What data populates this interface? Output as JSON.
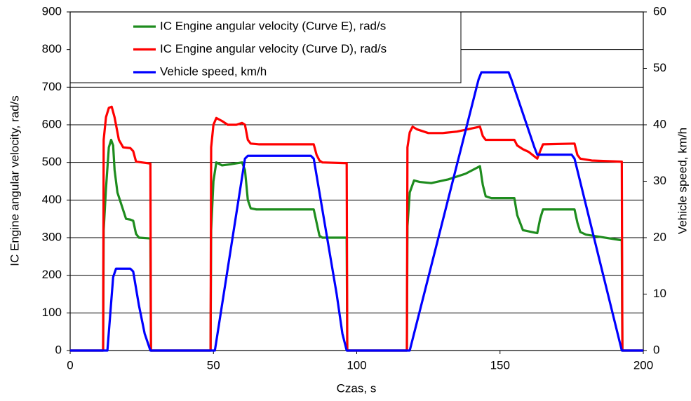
{
  "chart_data": {
    "type": "line",
    "xlabel": "Czas, s",
    "ylabel": "IC Engine  angular velocity, rad/s",
    "y2label": "Vehicle speed, km/h",
    "xlim": [
      0,
      200
    ],
    "xticks": [
      0,
      50,
      100,
      150,
      200
    ],
    "ylim": [
      0,
      900
    ],
    "yticks": [
      0,
      100,
      200,
      300,
      400,
      500,
      600,
      700,
      800,
      900
    ],
    "y2lim": [
      0,
      60
    ],
    "y2ticks": [
      0,
      10,
      20,
      30,
      40,
      50,
      60
    ],
    "grid": true,
    "legend": "upper-left",
    "series": [
      {
        "name": "IC Engine angular velocity (Curve E), rad/s",
        "color": "#1e8c1e",
        "x": [
          0,
          11.5,
          11.7,
          12.5,
          13.5,
          14.3,
          15,
          15.5,
          16.5,
          18,
          19.5,
          21,
          22,
          23,
          24,
          28,
          28.2,
          49,
          49.2,
          50,
          51,
          53,
          56,
          60,
          61,
          62,
          63,
          65,
          85,
          86,
          87,
          88,
          96.5,
          96.7,
          117.5,
          117.7,
          118.5,
          120,
          122,
          126,
          132,
          138,
          143,
          144,
          145,
          147,
          155,
          156,
          158,
          163,
          164,
          165,
          176,
          177,
          178,
          180,
          185,
          192.5,
          192.7,
          200
        ],
        "values": [
          0,
          0,
          320,
          430,
          540,
          560,
          545,
          480,
          420,
          385,
          350,
          348,
          345,
          310,
          300,
          298,
          0,
          0,
          320,
          450,
          500,
          492,
          495,
          500,
          480,
          400,
          378,
          375,
          375,
          340,
          305,
          300,
          300,
          0,
          0,
          330,
          420,
          452,
          448,
          445,
          455,
          470,
          490,
          440,
          410,
          405,
          405,
          360,
          320,
          312,
          350,
          375,
          375,
          340,
          315,
          308,
          302,
          293,
          0,
          0
        ]
      },
      {
        "name": "IC Engine angular velocity (Curve D), rad/s",
        "color": "#ff0000",
        "x": [
          0,
          11.5,
          11.7,
          12.5,
          13.5,
          14.5,
          15.5,
          17,
          18.5,
          21,
          22,
          23,
          28,
          28.2,
          49,
          49.2,
          50,
          51,
          53,
          55,
          58,
          60,
          61,
          62,
          63,
          66,
          85,
          86,
          87,
          88,
          96.5,
          96.7,
          117.5,
          117.7,
          118.5,
          119.5,
          121,
          125,
          130,
          135,
          140,
          143,
          144,
          145,
          155,
          156,
          158,
          160,
          163,
          164,
          165,
          176,
          177,
          178,
          182,
          192.5,
          192.7,
          200
        ],
        "values": [
          0,
          0,
          560,
          620,
          645,
          648,
          620,
          560,
          540,
          538,
          530,
          502,
          497,
          0,
          0,
          540,
          600,
          618,
          610,
          600,
          600,
          605,
          600,
          560,
          550,
          548,
          548,
          520,
          505,
          500,
          498,
          0,
          0,
          540,
          580,
          595,
          588,
          578,
          578,
          582,
          590,
          595,
          570,
          560,
          560,
          545,
          535,
          528,
          510,
          530,
          548,
          550,
          520,
          510,
          505,
          502,
          0,
          0
        ]
      },
      {
        "name": "Vehicle speed, km/h",
        "color": "#0000ff",
        "axis": "y2",
        "x": [
          0,
          11.5,
          13,
          15,
          16,
          21,
          22,
          24,
          26,
          28,
          49,
          50.5,
          61,
          62,
          84,
          85,
          93,
          95,
          96.5,
          117.5,
          118.5,
          142.5,
          143.5,
          153,
          154,
          162,
          163,
          175,
          176,
          192.5,
          200
        ],
        "values": [
          0,
          0,
          0,
          13,
          14.5,
          14.5,
          14,
          8,
          3,
          0,
          0,
          0,
          34,
          34.5,
          34.5,
          34,
          10,
          3,
          0,
          0,
          0,
          48,
          49.3,
          49.3,
          48,
          36,
          34.7,
          34.7,
          34,
          0,
          0
        ]
      }
    ]
  }
}
